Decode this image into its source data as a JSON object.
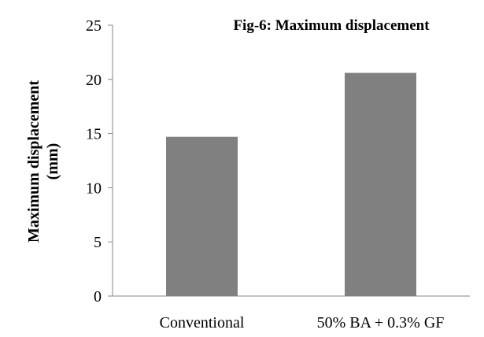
{
  "chart_data": {
    "type": "bar",
    "title": "Fig-6: Maximum displacement",
    "ylabel_line1": "Maximum displacement",
    "ylabel_line2": "(mm)",
    "xlabel": "",
    "categories": [
      "Conventional",
      "50% BA + 0.3% GF"
    ],
    "values": [
      14.7,
      20.6
    ],
    "ylim": [
      0,
      25
    ],
    "yticks": [
      0,
      5,
      10,
      15,
      20,
      25
    ],
    "grid": false,
    "legend": "none",
    "bar_color": "#808080"
  }
}
